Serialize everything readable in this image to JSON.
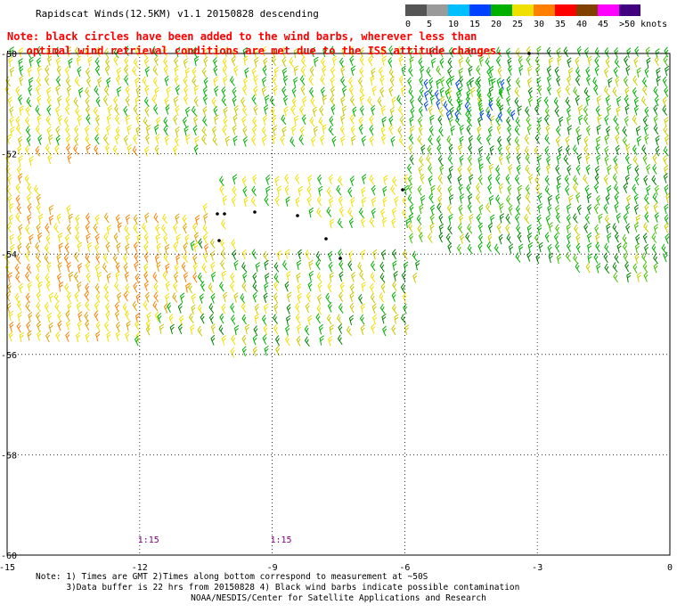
{
  "header": {
    "title": "Rapidscat Winds(12.5KM) v1.1 20150828 descending",
    "note": "Note: black circles have been added to the wind barbs, wherever less than\n   optimal wind retrieval conditions are met due to the ISS attitude changes."
  },
  "colorbar": {
    "unit": "knots",
    "labels": [
      "0",
      "5",
      "10",
      "15",
      "20",
      "25",
      "30",
      "35",
      "40",
      "45",
      ">50 knots"
    ],
    "colors": [
      "#555555",
      "#9a9a9a",
      "#00bfff",
      "#0040ff",
      "#00b000",
      "#f0e000",
      "#ff8000",
      "#ff0000",
      "#804000",
      "#ff00ff",
      "#400080"
    ]
  },
  "map": {
    "lon_range": [
      -15,
      0
    ],
    "lat_range": [
      -60,
      -50
    ],
    "x_ticks": [
      "-15",
      "-12",
      "-9",
      "-6",
      "-3",
      "0"
    ],
    "y_ticks": [
      "-50",
      "-52",
      "-54",
      "-56",
      "-58",
      "-60"
    ],
    "time_labels": [
      {
        "text": "1:15",
        "lon": -11.8
      },
      {
        "text": "1:15",
        "lon": -8.8
      }
    ]
  },
  "footer": {
    "notes": "Note: 1) Times are GMT 2)Times along bottom correspond to measurement at ~50S\n      3)Data buffer is 22 hrs from 20150828 4) Black wind barbs indicate possible contamination",
    "credit": "NOAA/NESDIS/Center for Satellite Applications and Research"
  }
}
